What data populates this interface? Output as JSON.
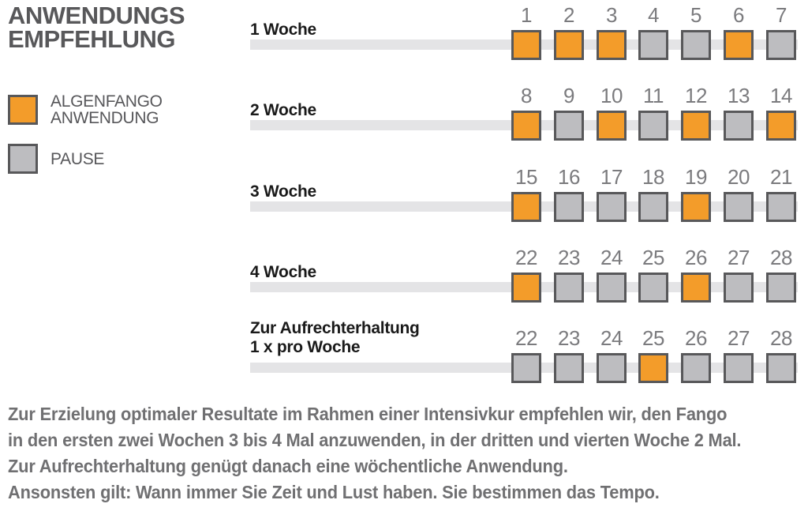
{
  "title": {
    "lines": [
      "ANWENDUNGS",
      "EMPFEHLUNG"
    ]
  },
  "legend": {
    "anwendung_lines": [
      "ALGENFANGO",
      "ANWENDUNG"
    ],
    "pause_label": "PAUSE"
  },
  "rows": [
    {
      "label_lines": [
        "1 Woche"
      ],
      "days": [
        {
          "n": "1",
          "type": "anwendung"
        },
        {
          "n": "2",
          "type": "anwendung"
        },
        {
          "n": "3",
          "type": "anwendung"
        },
        {
          "n": "4",
          "type": "pause"
        },
        {
          "n": "5",
          "type": "pause"
        },
        {
          "n": "6",
          "type": "anwendung"
        },
        {
          "n": "7",
          "type": "pause"
        }
      ]
    },
    {
      "label_lines": [
        "2 Woche"
      ],
      "days": [
        {
          "n": "8",
          "type": "anwendung"
        },
        {
          "n": "9",
          "type": "pause"
        },
        {
          "n": "10",
          "type": "anwendung"
        },
        {
          "n": "11",
          "type": "pause"
        },
        {
          "n": "12",
          "type": "anwendung"
        },
        {
          "n": "13",
          "type": "pause"
        },
        {
          "n": "14",
          "type": "anwendung"
        }
      ]
    },
    {
      "label_lines": [
        "3 Woche"
      ],
      "days": [
        {
          "n": "15",
          "type": "anwendung"
        },
        {
          "n": "16",
          "type": "pause"
        },
        {
          "n": "17",
          "type": "pause"
        },
        {
          "n": "18",
          "type": "pause"
        },
        {
          "n": "19",
          "type": "anwendung"
        },
        {
          "n": "20",
          "type": "pause"
        },
        {
          "n": "21",
          "type": "pause"
        }
      ]
    },
    {
      "label_lines": [
        "4 Woche"
      ],
      "days": [
        {
          "n": "22",
          "type": "anwendung"
        },
        {
          "n": "23",
          "type": "pause"
        },
        {
          "n": "24",
          "type": "pause"
        },
        {
          "n": "25",
          "type": "pause"
        },
        {
          "n": "26",
          "type": "anwendung"
        },
        {
          "n": "27",
          "type": "pause"
        },
        {
          "n": "28",
          "type": "pause"
        }
      ]
    },
    {
      "label_lines": [
        "Zur Aufrechterhaltung",
        "1 x pro Woche"
      ],
      "days": [
        {
          "n": "22",
          "type": "pause"
        },
        {
          "n": "23",
          "type": "pause"
        },
        {
          "n": "24",
          "type": "pause"
        },
        {
          "n": "25",
          "type": "anwendung"
        },
        {
          "n": "26",
          "type": "pause"
        },
        {
          "n": "27",
          "type": "pause"
        },
        {
          "n": "28",
          "type": "pause"
        }
      ]
    }
  ],
  "footer": {
    "lines": [
      "Zur Erzielung optimaler Resultate im Rahmen einer Intensivkur empfehlen wir, den Fango",
      "in den ersten zwei Wochen 3 bis 4 Mal anzuwenden, in der dritten und vierten Woche 2 Mal.",
      "Zur Aufrechterhaltung genügt danach eine wöchentliche Anwendung.",
      "Ansonsten gilt: Wann immer Sie Zeit und Lust haben. Sie bestimmen das Tempo."
    ]
  },
  "colors": {
    "anwendung_orange": "#F39C2A",
    "pause_gray": "#BDBDC0",
    "square_border": "#58585A",
    "track_gray": "#E4E4E6",
    "title_gray": "#58585A",
    "number_gray": "#7B7B7E",
    "label_black": "#1A1A1A",
    "footer_gray": "#707072"
  }
}
